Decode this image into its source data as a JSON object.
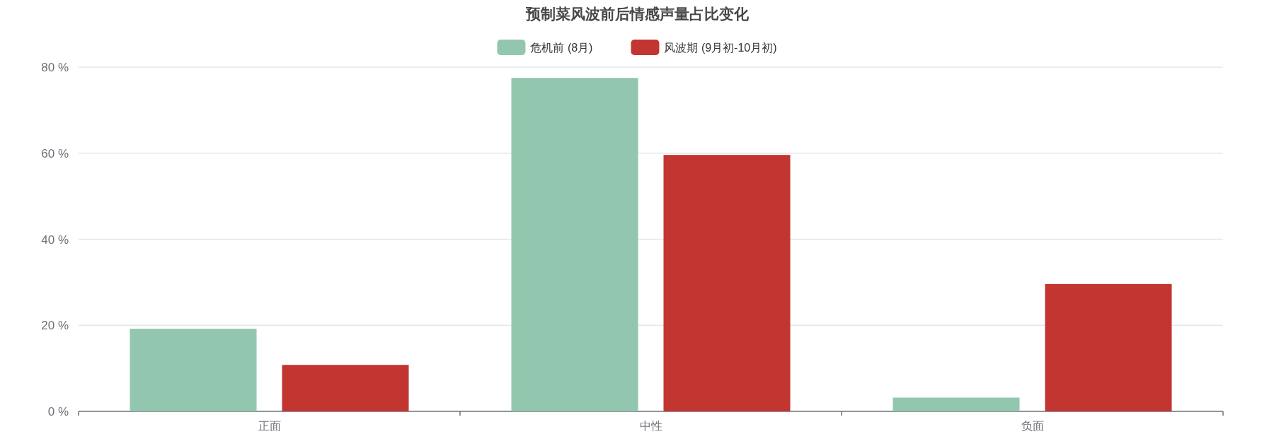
{
  "chart_data": {
    "type": "bar",
    "title": "预制菜风波前后情感声量占比变化",
    "categories": [
      "正面",
      "中性",
      "负面"
    ],
    "series": [
      {
        "name": "危机前 (8月)",
        "color": "#93c6ae",
        "values": [
          19.2,
          77.5,
          3.2
        ]
      },
      {
        "name": "风波期 (9月初-10月初)",
        "color": "#c23531",
        "values": [
          10.8,
          59.6,
          29.6
        ]
      }
    ],
    "ylim": [
      0,
      80
    ],
    "yticks": [
      {
        "value": 0,
        "label": "0 %"
      },
      {
        "value": 20,
        "label": "20 %"
      },
      {
        "value": 40,
        "label": "40 %"
      },
      {
        "value": 60,
        "label": "60 %"
      },
      {
        "value": 80,
        "label": "80 %"
      }
    ],
    "grid": "y",
    "legend": "top"
  }
}
